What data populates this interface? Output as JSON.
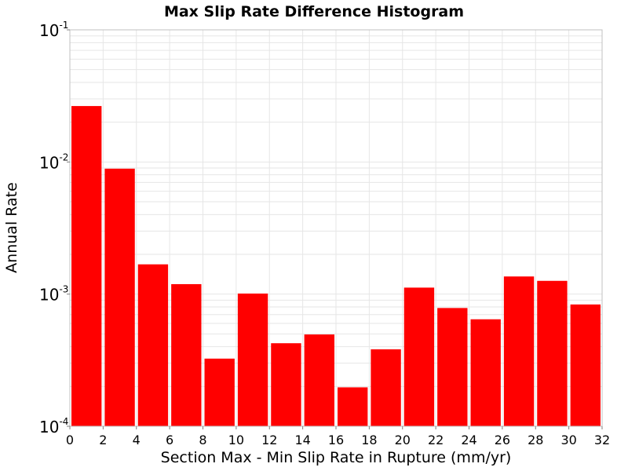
{
  "chart_data": {
    "type": "bar",
    "title": "Max Slip Rate Difference Histogram",
    "xlabel": "Section Max - Min Slip Rate in Rupture (mm/yr)",
    "ylabel": "Annual Rate",
    "x_ticks": [
      "0",
      "2",
      "4",
      "6",
      "8",
      "10",
      "12",
      "14",
      "16",
      "18",
      "20",
      "22",
      "24",
      "26",
      "28",
      "30",
      "32"
    ],
    "y_ticks": [
      {
        "base": "10",
        "exp": "-4"
      },
      {
        "base": "10",
        "exp": "-3"
      },
      {
        "base": "10",
        "exp": "-2"
      },
      {
        "base": "10",
        "exp": "-1"
      }
    ],
    "xlim": [
      0,
      32
    ],
    "ylim": [
      0.0001,
      0.1
    ],
    "y_scale": "log",
    "grid": true,
    "bin_width": 2,
    "x": [
      1,
      3,
      5,
      7,
      9,
      11,
      13,
      15,
      17,
      19,
      21,
      23,
      25,
      27,
      29,
      31
    ],
    "values": [
      0.0265,
      0.0089,
      0.00168,
      0.00119,
      0.000325,
      0.00101,
      0.000425,
      0.000495,
      0.000197,
      0.000382,
      0.00112,
      0.000785,
      0.000645,
      0.00136,
      0.00126,
      0.000835
    ],
    "colors": {
      "bar": "#ff0000",
      "grid": "#e6e6e6",
      "frame": "#c0c0c0"
    }
  }
}
